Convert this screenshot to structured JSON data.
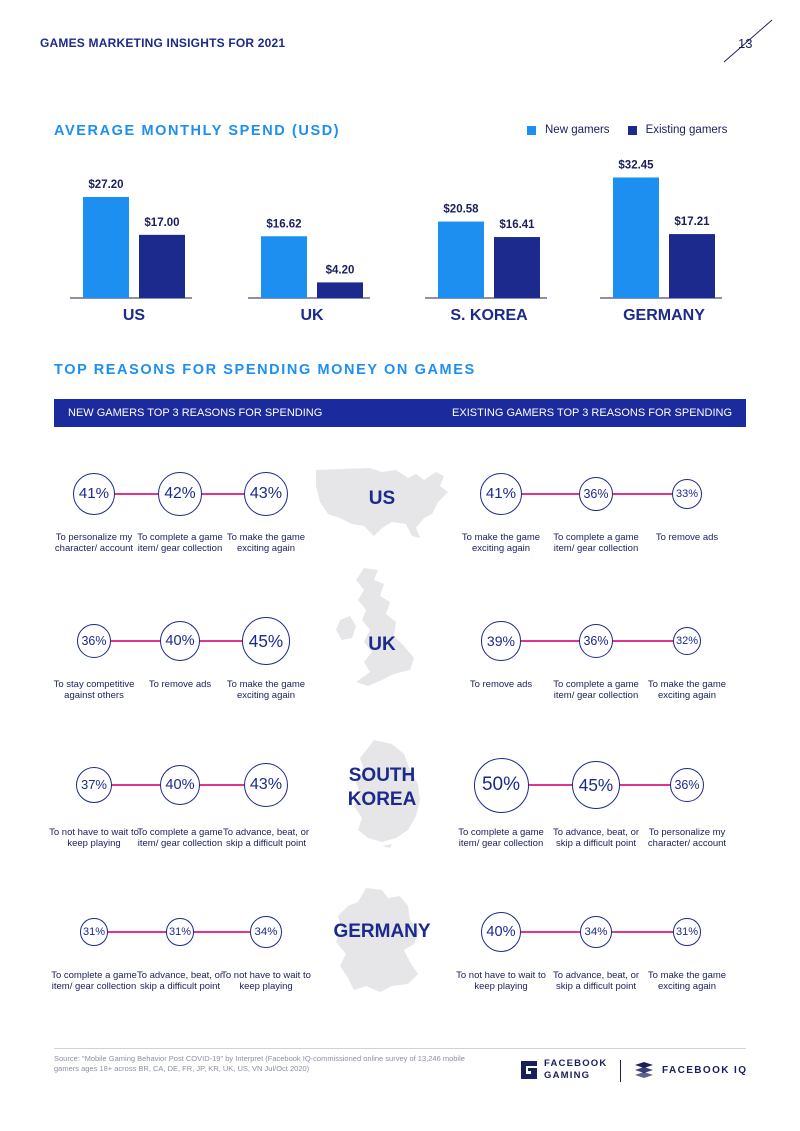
{
  "header": {
    "title": "GAMES MARKETING INSIGHTS FOR 2021",
    "page_number": "13"
  },
  "spend_section": {
    "title": "AVERAGE MONTHLY SPEND (USD)",
    "legend": [
      {
        "label": "New gamers",
        "color": "#1d8ff0"
      },
      {
        "label": "Existing gamers",
        "color": "#1b2a8c"
      }
    ]
  },
  "chart_data": {
    "type": "bar",
    "title": "AVERAGE MONTHLY SPEND (USD)",
    "categories": [
      "US",
      "UK",
      "S. KOREA",
      "GERMANY"
    ],
    "series": [
      {
        "name": "New gamers",
        "values": [
          27.2,
          16.62,
          20.58,
          32.45
        ],
        "labels": [
          "$27.20",
          "$16.62",
          "$20.58",
          "$32.45"
        ]
      },
      {
        "name": "Existing gamers",
        "values": [
          17.0,
          4.2,
          16.41,
          17.21
        ],
        "labels": [
          "$17.00",
          "$4.20",
          "$16.41",
          "$17.21"
        ]
      }
    ],
    "ylim": [
      0,
      35
    ],
    "grid": false,
    "legend_position": "top-right"
  },
  "reasons_section": {
    "title": "TOP REASONS FOR SPENDING MONEY ON GAMES",
    "banner_left": "NEW GAMERS TOP 3 REASONS FOR SPENDING",
    "banner_right": "EXISTING GAMERS TOP 3 REASONS FOR SPENDING",
    "countries": [
      {
        "name_line1": "US",
        "name_line2": "",
        "new": [
          {
            "pct": "41%",
            "reason": "To personalize my character/ account"
          },
          {
            "pct": "42%",
            "reason": "To complete a game item/ gear collection"
          },
          {
            "pct": "43%",
            "reason": "To make the game exciting again"
          }
        ],
        "existing": [
          {
            "pct": "41%",
            "reason": "To make the game exciting again"
          },
          {
            "pct": "36%",
            "reason": "To complete a game item/ gear collection"
          },
          {
            "pct": "33%",
            "reason": "To remove ads"
          }
        ]
      },
      {
        "name_line1": "UK",
        "name_line2": "",
        "new": [
          {
            "pct": "36%",
            "reason": "To stay competitive against others"
          },
          {
            "pct": "40%",
            "reason": "To remove ads"
          },
          {
            "pct": "45%",
            "reason": "To make the game exciting again"
          }
        ],
        "existing": [
          {
            "pct": "39%",
            "reason": "To remove ads"
          },
          {
            "pct": "36%",
            "reason": "To complete a game item/ gear collection"
          },
          {
            "pct": "32%",
            "reason": "To make the game exciting again"
          }
        ]
      },
      {
        "name_line1": "SOUTH",
        "name_line2": "KOREA",
        "new": [
          {
            "pct": "37%",
            "reason": "To not have to wait to keep playing"
          },
          {
            "pct": "40%",
            "reason": "To complete a game item/ gear collection"
          },
          {
            "pct": "43%",
            "reason": "To advance, beat, or skip a difficult point"
          }
        ],
        "existing": [
          {
            "pct": "50%",
            "reason": "To complete a game item/ gear collection"
          },
          {
            "pct": "45%",
            "reason": "To advance, beat, or skip a difficult point"
          },
          {
            "pct": "36%",
            "reason": "To personalize my character/ account"
          }
        ]
      },
      {
        "name_line1": "GERMANY",
        "name_line2": "",
        "new": [
          {
            "pct": "31%",
            "reason": "To complete a game item/ gear collection"
          },
          {
            "pct": "31%",
            "reason": "To advance, beat, or skip a difficult point"
          },
          {
            "pct": "34%",
            "reason": "To not have to wait to keep playing"
          }
        ],
        "existing": [
          {
            "pct": "40%",
            "reason": "To not have to wait to keep playing"
          },
          {
            "pct": "34%",
            "reason": "To advance, beat, or skip a difficult point"
          },
          {
            "pct": "31%",
            "reason": "To make the game exciting again"
          }
        ]
      }
    ]
  },
  "footer": {
    "source": "Source: \"Mobile Gaming Behavior Post COVID-19\" by Interpret (Facebook IQ-commissioned online survey of 13,246 mobile gamers ages 18+ across BR, CA, DE, FR, JP, KR, UK, US, VN Jul/Oct 2020)",
    "logo1_line1": "FACEBOOK",
    "logo1_line2": "GAMING",
    "logo2": "FACEBOOK IQ"
  }
}
